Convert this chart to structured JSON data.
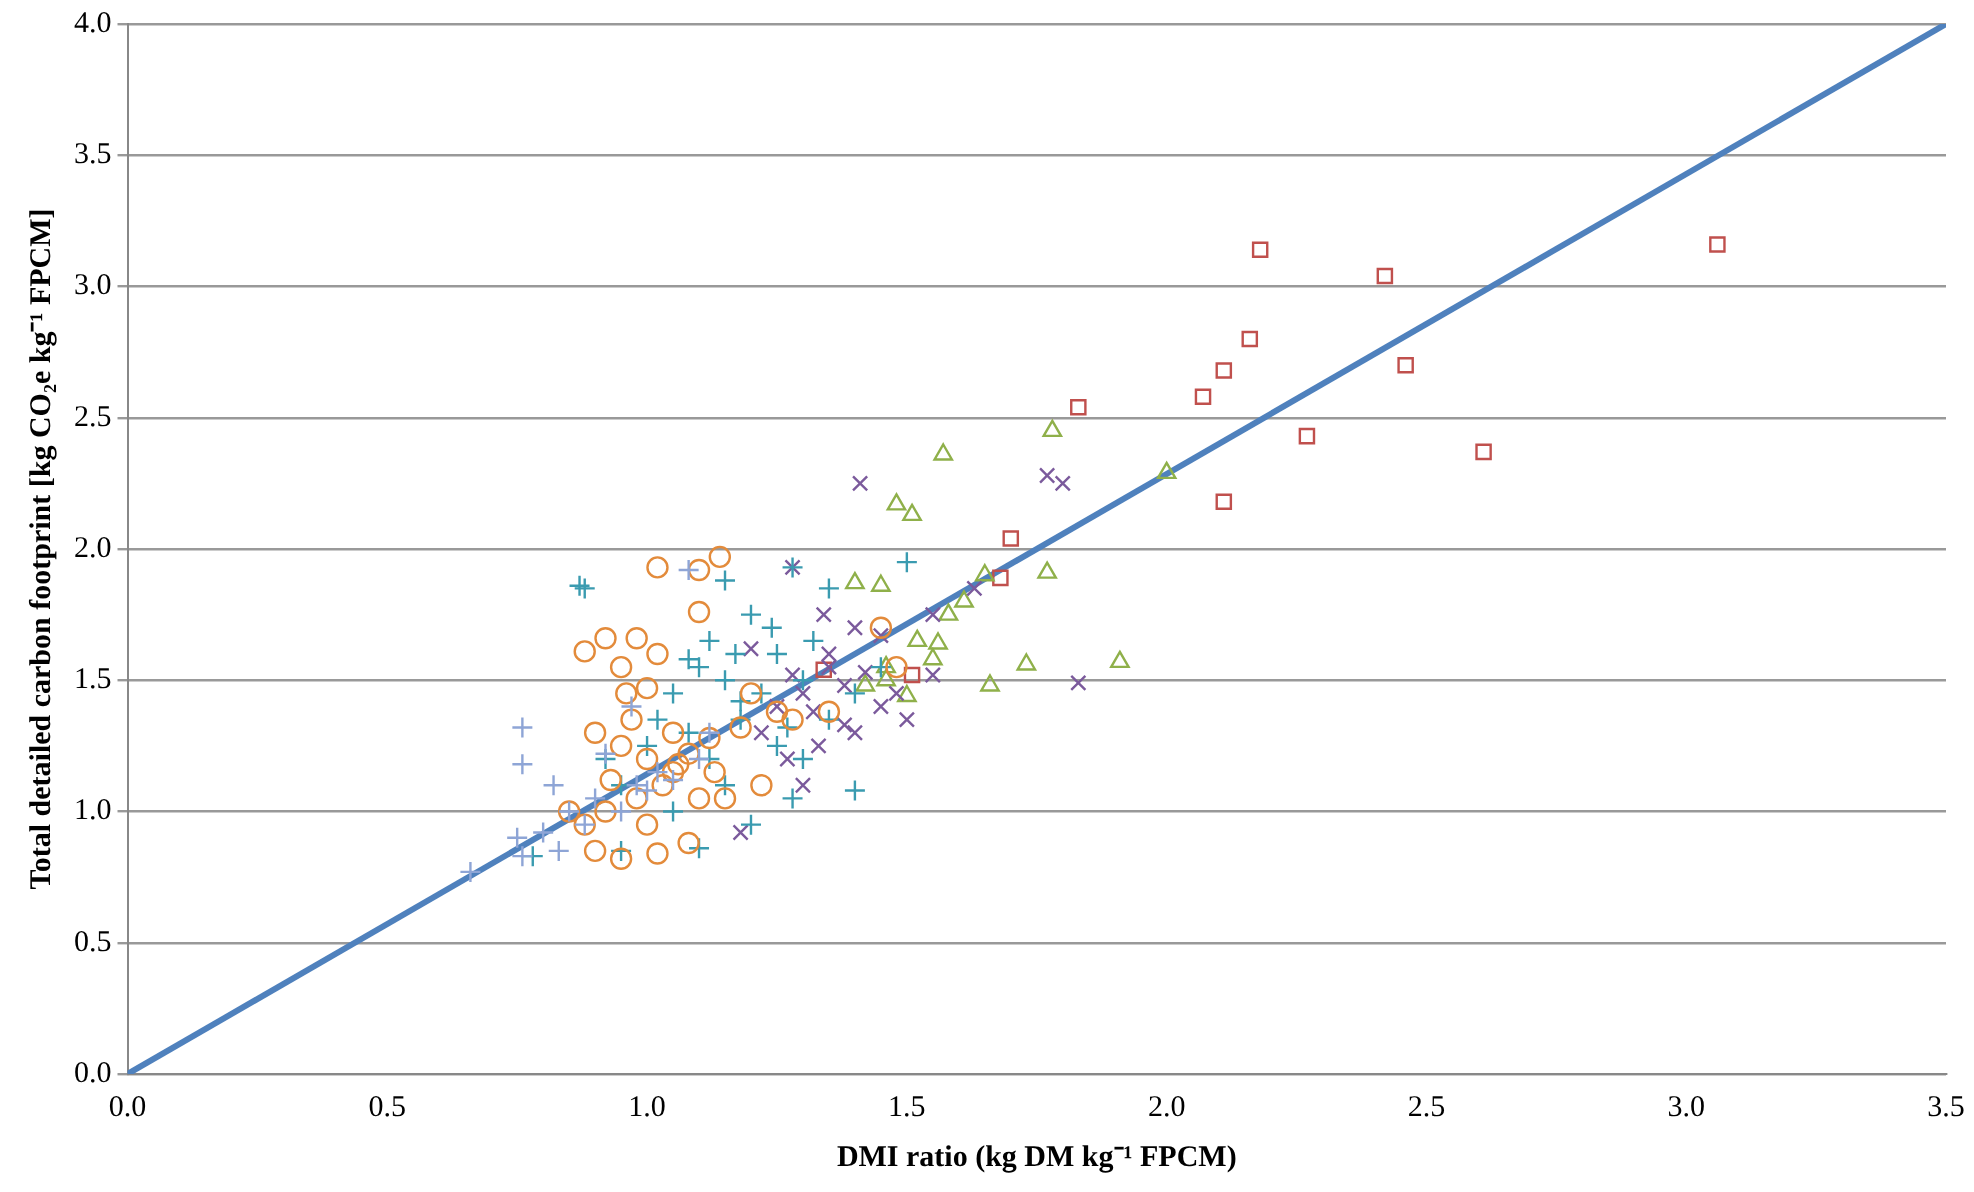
{
  "chart_data": {
    "type": "scatter",
    "xlabel": "DMI ratio (kg DM kg⁻¹ FPCM)",
    "ylabel": "Total detailed carbon footprint [kg CO₂e kg⁻¹ FPCM]",
    "xlim": [
      0,
      3.5
    ],
    "ylim": [
      0,
      4.0
    ],
    "xticks": [
      {
        "value": 0,
        "label": "0.0"
      },
      0.5,
      {
        "value": 1,
        "label": "1.0"
      },
      1.5,
      {
        "value": 2,
        "label": "2.0"
      },
      2.5,
      {
        "value": 3,
        "label": "3.0"
      },
      3.5
    ],
    "yticks": [
      {
        "value": 0,
        "label": "0.0"
      },
      0.5,
      {
        "value": 1,
        "label": "1.0"
      },
      1.5,
      {
        "value": 2,
        "label": "2.0"
      },
      2.5,
      {
        "value": 3,
        "label": "3.0"
      },
      3.5,
      {
        "value": 4,
        "label": "4.0"
      }
    ],
    "grid": "y",
    "legend": false,
    "series": [
      {
        "color": "#8ea5d6",
        "marker": "cross",
        "x": [
          0.66,
          0.76,
          0.75,
          0.8,
          0.76,
          0.76,
          0.82,
          0.85,
          0.9,
          0.95,
          1.0,
          0.92,
          1.08,
          0.98,
          1.05,
          1.1,
          0.88,
          0.83,
          1.02,
          0.97,
          1.12
        ],
        "values": [
          0.77,
          0.83,
          0.9,
          0.92,
          1.18,
          1.32,
          1.1,
          1.0,
          1.05,
          1.0,
          1.08,
          1.22,
          1.92,
          1.1,
          1.12,
          1.2,
          0.95,
          0.85,
          1.15,
          1.4,
          1.3
        ]
      },
      {
        "color": "#e38b3b",
        "marker": "circle",
        "x": [
          1.02,
          1.1,
          1.14,
          1.1,
          0.88,
          0.92,
          0.98,
          0.95,
          1.02,
          0.96,
          1.0,
          1.2,
          1.28,
          1.35,
          1.45,
          1.48,
          0.9,
          0.95,
          1.0,
          1.05,
          1.08,
          1.12,
          1.18,
          1.03,
          1.1,
          0.98,
          0.92,
          0.88,
          0.85,
          0.9,
          0.95,
          1.02,
          1.08,
          1.15,
          1.22,
          1.05,
          0.97,
          1.0,
          1.06,
          1.13,
          0.93,
          1.25
        ],
        "values": [
          1.93,
          1.92,
          1.97,
          1.76,
          1.61,
          1.66,
          1.66,
          1.55,
          1.6,
          1.45,
          1.47,
          1.45,
          1.35,
          1.38,
          1.7,
          1.55,
          1.3,
          1.25,
          1.2,
          1.15,
          1.22,
          1.28,
          1.32,
          1.1,
          1.05,
          1.05,
          1.0,
          0.95,
          1.0,
          0.85,
          0.82,
          0.84,
          0.88,
          1.05,
          1.1,
          1.3,
          1.35,
          0.95,
          1.18,
          1.15,
          1.12,
          1.38
        ]
      },
      {
        "color": "#3a9bb0",
        "marker": "cross",
        "x": [
          0.88,
          0.87,
          1.15,
          1.28,
          1.5,
          1.12,
          1.2,
          1.1,
          1.25,
          1.05,
          1.15,
          1.3,
          1.0,
          1.08,
          1.18,
          1.22,
          1.27,
          1.35,
          1.12,
          1.25,
          1.3,
          0.95,
          1.05,
          1.15,
          1.4,
          1.28,
          1.1,
          1.2,
          0.78,
          0.95,
          1.35,
          1.17,
          1.02,
          1.4,
          1.24,
          0.92,
          1.18,
          1.32,
          1.45,
          1.08
        ],
        "values": [
          1.85,
          1.86,
          1.88,
          1.93,
          1.95,
          1.65,
          1.75,
          1.55,
          1.6,
          1.45,
          1.5,
          1.5,
          1.25,
          1.3,
          1.35,
          1.45,
          1.32,
          1.35,
          1.2,
          1.25,
          1.2,
          1.1,
          1.0,
          1.1,
          1.08,
          1.05,
          0.86,
          0.95,
          0.83,
          0.85,
          1.85,
          1.6,
          1.35,
          1.45,
          1.7,
          1.2,
          1.42,
          1.65,
          1.55,
          1.58
        ]
      },
      {
        "color": "#7b5a9c",
        "marker": "x",
        "x": [
          1.41,
          1.77,
          1.8,
          1.83,
          1.5,
          1.55,
          1.63,
          1.45,
          1.4,
          1.35,
          1.3,
          1.32,
          1.38,
          1.25,
          1.45,
          1.28,
          1.35,
          1.42,
          1.22,
          1.27,
          1.4,
          1.48,
          1.55,
          1.34,
          1.2,
          1.38,
          1.3,
          1.18,
          1.28,
          1.33
        ],
        "values": [
          2.25,
          2.28,
          2.25,
          1.49,
          1.35,
          1.75,
          1.85,
          1.67,
          1.7,
          1.55,
          1.45,
          1.38,
          1.33,
          1.4,
          1.4,
          1.93,
          1.6,
          1.53,
          1.3,
          1.2,
          1.3,
          1.45,
          1.52,
          1.75,
          1.62,
          1.48,
          1.1,
          0.92,
          1.52,
          1.25
        ]
      },
      {
        "color": "#8fb04a",
        "marker": "triangle",
        "x": [
          1.57,
          1.78,
          2.0,
          1.48,
          1.51,
          1.61,
          1.65,
          1.77,
          1.73,
          1.91,
          1.66,
          1.46,
          1.55,
          1.45,
          1.4,
          1.58,
          1.52,
          1.5,
          1.46,
          1.42,
          1.56
        ],
        "values": [
          2.36,
          2.45,
          2.29,
          2.17,
          2.13,
          1.8,
          1.9,
          1.91,
          1.56,
          1.57,
          1.48,
          1.55,
          1.58,
          1.86,
          1.87,
          1.75,
          1.65,
          1.44,
          1.5,
          1.48,
          1.64
        ]
      },
      {
        "color": "#c0504d",
        "marker": "square",
        "x": [
          1.83,
          2.07,
          2.11,
          2.16,
          2.18,
          2.42,
          2.46,
          2.27,
          2.61,
          3.06,
          2.11,
          1.7,
          1.68,
          1.51,
          1.34
        ],
        "values": [
          2.54,
          2.58,
          2.68,
          2.8,
          3.14,
          3.04,
          2.7,
          2.43,
          2.37,
          3.16,
          2.18,
          2.04,
          1.89,
          1.52,
          1.54
        ]
      },
      {
        "type": "line",
        "color": "#4f81bd",
        "marker": "none",
        "x": [
          0,
          3.5
        ],
        "values": [
          0,
          4.0
        ]
      }
    ]
  }
}
